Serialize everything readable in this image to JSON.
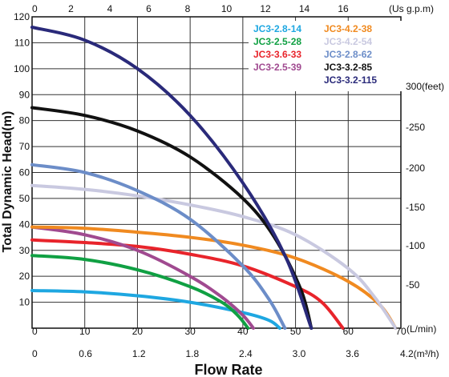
{
  "chart_data": {
    "type": "line",
    "xlabel": "Flow Rate",
    "ylabel": "Total Dynamic Head(m)",
    "x_unit_label": "(L/min)",
    "top_axis_unit": "(Us g.p.m)",
    "right_axis_unit": "300(feet)",
    "bottom2_axis_unit": "4.2(m³/h)",
    "xlim": [
      0,
      70
    ],
    "ylim": [
      0,
      120
    ],
    "grid": true,
    "legend_position": "top-right",
    "x_ticks": [
      "0",
      "10",
      "20",
      "30",
      "40",
      "50",
      "60",
      "70"
    ],
    "y_ticks": [
      "0",
      "10",
      "20",
      "30",
      "40",
      "50",
      "60",
      "70",
      "80",
      "90",
      "100",
      "110",
      "120"
    ],
    "top_ticks": [
      "0",
      "2",
      "4",
      "6",
      "8",
      "10",
      "12",
      "14",
      "16"
    ],
    "right_ticks": [
      "-50",
      "-100",
      "-150",
      "-200",
      "-250"
    ],
    "bottom2_ticks": [
      "0",
      "0.6",
      "1.2",
      "1.8",
      "2.4",
      "3.0",
      "3.6"
    ],
    "series": [
      {
        "name": "JC3-2.8-14",
        "color": "#1ea7e1",
        "x": [
          0,
          10,
          20,
          30,
          40,
          45,
          47
        ],
        "y": [
          14.5,
          14.0,
          12.5,
          10.0,
          6.0,
          3.0,
          0
        ]
      },
      {
        "name": "JC3-2.5-28",
        "color": "#10a043",
        "x": [
          0,
          10,
          20,
          30,
          36,
          39,
          41
        ],
        "y": [
          28,
          26.5,
          22.5,
          16,
          10,
          5,
          0
        ]
      },
      {
        "name": "JC3-3.6-33",
        "color": "#e8242b",
        "x": [
          0,
          10,
          20,
          30,
          40,
          50,
          55,
          59
        ],
        "y": [
          34,
          33,
          31.5,
          28.5,
          24,
          16,
          10,
          0
        ]
      },
      {
        "name": "JC3-2.5-39",
        "color": "#a04a90",
        "x": [
          0,
          10,
          20,
          30,
          36,
          40,
          42
        ],
        "y": [
          39,
          36,
          30,
          20,
          12,
          5,
          0
        ]
      },
      {
        "name": "JC3-4.2-38",
        "color": "#f08a20",
        "x": [
          0,
          10,
          20,
          30,
          40,
          50,
          60,
          66,
          69
        ],
        "y": [
          39,
          38.5,
          37,
          35,
          32,
          27,
          18,
          9,
          0
        ]
      },
      {
        "name": "JC3-4.2-54",
        "color": "#c9c9e0",
        "x": [
          0,
          10,
          20,
          30,
          40,
          50,
          60,
          65,
          69
        ],
        "y": [
          55,
          53.5,
          51,
          47.5,
          43,
          36,
          23,
          12,
          0
        ]
      },
      {
        "name": "JC3-2.8-62",
        "color": "#6c8dc8",
        "x": [
          0,
          10,
          20,
          30,
          40,
          45,
          48
        ],
        "y": [
          63,
          60,
          53,
          42,
          24,
          11,
          0
        ]
      },
      {
        "name": "JC3-3.2-85",
        "color": "#111111",
        "x": [
          0,
          10,
          20,
          30,
          40,
          46,
          51,
          53
        ],
        "y": [
          85,
          82,
          76,
          66,
          50,
          35,
          15,
          0
        ]
      },
      {
        "name": "JC3-3.2-115",
        "color": "#2a2a7a",
        "x": [
          0,
          10,
          20,
          30,
          40,
          48,
          53
        ],
        "y": [
          116,
          111,
          100,
          82,
          56,
          28,
          0
        ]
      }
    ]
  }
}
